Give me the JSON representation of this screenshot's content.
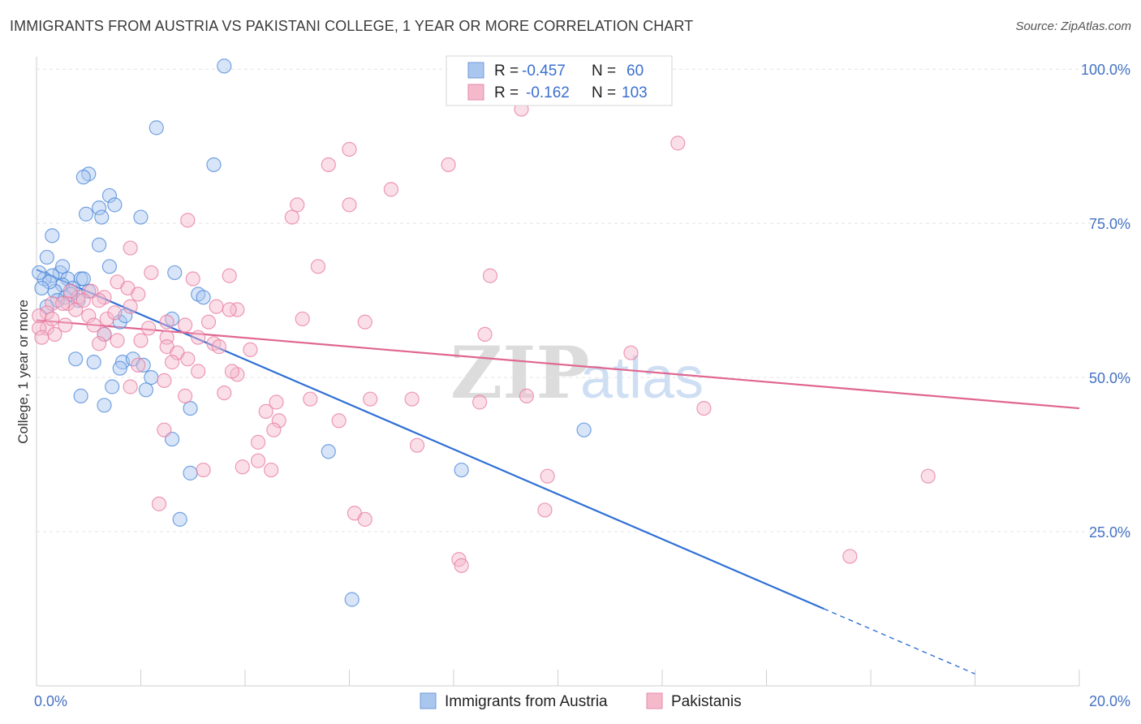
{
  "title": "IMMIGRANTS FROM AUSTRIA VS PAKISTANI COLLEGE, 1 YEAR OR MORE CORRELATION CHART",
  "source": "Source: ZipAtlas.com",
  "watermark": "ZIPatlas",
  "colors": {
    "blue": "#4a86d8",
    "pink": "#e8799f",
    "blue_fill": "#a9c6ef",
    "pink_fill": "#f5b9cc"
  },
  "legend": {
    "rows": [
      {
        "r_label": "R =",
        "r_value": "-0.457",
        "n_label": "N =",
        "n_value": "60"
      },
      {
        "r_label": "R =",
        "r_value": "-0.162",
        "n_label": "N =",
        "n_value": "103"
      }
    ]
  },
  "chart_data": {
    "type": "scatter",
    "xlabel": "",
    "ylabel": "College, 1 year or more",
    "x_tick_labels": [
      "0.0%",
      "20.0%"
    ],
    "y_tick_labels": [
      "100.0%",
      "75.0%",
      "50.0%",
      "25.0%"
    ],
    "xlim": [
      0,
      20
    ],
    "ylim": [
      0,
      102
    ],
    "y_ticks": [
      100,
      75,
      50,
      25
    ],
    "series": [
      {
        "name": "Immigrants from Austria",
        "color": "blue",
        "trend": {
          "x0": 0,
          "y0": 67.5,
          "x1": 15.1,
          "y1": 12.5,
          "dash_to_x": 18.0
        },
        "points": [
          [
            3.6,
            100.5
          ],
          [
            2.3,
            90.5
          ],
          [
            3.4,
            84.5
          ],
          [
            1.0,
            83.0
          ],
          [
            0.9,
            82.5
          ],
          [
            1.4,
            79.5
          ],
          [
            1.2,
            77.5
          ],
          [
            1.5,
            78.0
          ],
          [
            0.95,
            76.5
          ],
          [
            1.25,
            76.0
          ],
          [
            2.0,
            76.0
          ],
          [
            0.3,
            73.0
          ],
          [
            1.2,
            71.5
          ],
          [
            0.2,
            69.5
          ],
          [
            1.4,
            68.0
          ],
          [
            0.45,
            67.0
          ],
          [
            0.3,
            66.5
          ],
          [
            0.6,
            66.0
          ],
          [
            0.85,
            66.0
          ],
          [
            2.65,
            67.0
          ],
          [
            0.15,
            66.0
          ],
          [
            0.5,
            65.0
          ],
          [
            0.7,
            64.5
          ],
          [
            1.0,
            64.0
          ],
          [
            0.35,
            64.0
          ],
          [
            0.25,
            65.5
          ],
          [
            0.55,
            63.0
          ],
          [
            0.8,
            62.5
          ],
          [
            3.1,
            63.5
          ],
          [
            3.2,
            63.0
          ],
          [
            2.6,
            59.5
          ],
          [
            1.6,
            59.0
          ],
          [
            1.3,
            57.0
          ],
          [
            0.75,
            53.0
          ],
          [
            1.1,
            52.5
          ],
          [
            1.65,
            52.5
          ],
          [
            1.85,
            53.0
          ],
          [
            1.6,
            51.5
          ],
          [
            2.05,
            52.0
          ],
          [
            2.2,
            50.0
          ],
          [
            1.45,
            48.5
          ],
          [
            2.1,
            48.0
          ],
          [
            0.85,
            47.0
          ],
          [
            1.3,
            45.5
          ],
          [
            2.95,
            45.0
          ],
          [
            2.6,
            40.0
          ],
          [
            5.6,
            38.0
          ],
          [
            8.15,
            35.0
          ],
          [
            2.95,
            34.5
          ],
          [
            10.5,
            41.5
          ],
          [
            2.75,
            27.0
          ],
          [
            6.05,
            14.0
          ],
          [
            0.05,
            67.0
          ],
          [
            0.1,
            64.5
          ],
          [
            0.4,
            62.5
          ],
          [
            0.65,
            63.5
          ],
          [
            1.7,
            60.0
          ],
          [
            0.2,
            61.5
          ],
          [
            0.5,
            68.0
          ],
          [
            0.9,
            66.0
          ]
        ]
      },
      {
        "name": "Pakistanis",
        "color": "pink",
        "trend": {
          "x0": 0,
          "y0": 59.3,
          "x1": 20,
          "y1": 45.0
        },
        "points": [
          [
            11.6,
            98.0
          ],
          [
            8.3,
            98.5
          ],
          [
            9.3,
            93.5
          ],
          [
            12.3,
            88.0
          ],
          [
            6.0,
            87.0
          ],
          [
            7.9,
            84.5
          ],
          [
            5.6,
            84.5
          ],
          [
            6.8,
            80.5
          ],
          [
            5.0,
            78.0
          ],
          [
            6.0,
            78.0
          ],
          [
            4.9,
            76.0
          ],
          [
            2.9,
            75.5
          ],
          [
            1.8,
            71.0
          ],
          [
            5.4,
            68.0
          ],
          [
            2.2,
            67.0
          ],
          [
            3.7,
            66.5
          ],
          [
            8.7,
            66.5
          ],
          [
            3.0,
            66.0
          ],
          [
            1.55,
            65.5
          ],
          [
            1.75,
            64.5
          ],
          [
            1.05,
            64.0
          ],
          [
            1.95,
            63.5
          ],
          [
            0.8,
            63.0
          ],
          [
            1.3,
            63.0
          ],
          [
            1.2,
            62.5
          ],
          [
            0.6,
            62.0
          ],
          [
            0.3,
            62.0
          ],
          [
            1.8,
            61.5
          ],
          [
            3.45,
            61.5
          ],
          [
            3.85,
            61.0
          ],
          [
            3.7,
            61.0
          ],
          [
            0.2,
            60.5
          ],
          [
            0.75,
            61.0
          ],
          [
            1.0,
            60.0
          ],
          [
            1.35,
            59.5
          ],
          [
            5.1,
            59.5
          ],
          [
            6.3,
            59.0
          ],
          [
            2.5,
            59.0
          ],
          [
            2.85,
            58.5
          ],
          [
            1.1,
            58.5
          ],
          [
            0.55,
            58.5
          ],
          [
            0.2,
            58.0
          ],
          [
            2.15,
            58.0
          ],
          [
            1.3,
            57.0
          ],
          [
            2.5,
            56.5
          ],
          [
            3.1,
            56.5
          ],
          [
            1.55,
            56.0
          ],
          [
            8.6,
            57.0
          ],
          [
            2.5,
            55.0
          ],
          [
            3.4,
            55.5
          ],
          [
            3.5,
            55.0
          ],
          [
            4.1,
            54.5
          ],
          [
            2.7,
            54.0
          ],
          [
            11.4,
            54.0
          ],
          [
            1.2,
            55.5
          ],
          [
            2.6,
            52.5
          ],
          [
            1.95,
            52.0
          ],
          [
            3.1,
            51.0
          ],
          [
            3.85,
            50.5
          ],
          [
            3.75,
            51.0
          ],
          [
            2.45,
            49.5
          ],
          [
            1.8,
            48.5
          ],
          [
            3.6,
            47.5
          ],
          [
            2.85,
            47.0
          ],
          [
            5.25,
            46.5
          ],
          [
            4.6,
            46.0
          ],
          [
            6.4,
            46.5
          ],
          [
            7.2,
            46.5
          ],
          [
            8.5,
            46.0
          ],
          [
            9.4,
            47.0
          ],
          [
            4.4,
            44.5
          ],
          [
            12.8,
            45.0
          ],
          [
            4.65,
            43.0
          ],
          [
            5.8,
            43.0
          ],
          [
            2.45,
            41.5
          ],
          [
            4.55,
            41.5
          ],
          [
            4.25,
            39.5
          ],
          [
            7.3,
            39.0
          ],
          [
            4.25,
            36.5
          ],
          [
            3.95,
            35.5
          ],
          [
            4.5,
            35.0
          ],
          [
            3.2,
            35.0
          ],
          [
            9.8,
            34.0
          ],
          [
            17.1,
            34.0
          ],
          [
            2.35,
            29.5
          ],
          [
            6.1,
            28.0
          ],
          [
            6.3,
            27.0
          ],
          [
            9.75,
            28.5
          ],
          [
            8.1,
            20.5
          ],
          [
            8.15,
            19.5
          ],
          [
            15.6,
            21.0
          ],
          [
            0.05,
            58.0
          ],
          [
            0.1,
            56.5
          ],
          [
            0.05,
            60.0
          ],
          [
            0.3,
            59.5
          ],
          [
            0.5,
            62.0
          ],
          [
            0.65,
            64.0
          ],
          [
            0.9,
            62.5
          ],
          [
            1.5,
            60.5
          ],
          [
            2.0,
            56.0
          ],
          [
            2.9,
            53.0
          ],
          [
            3.3,
            59.0
          ],
          [
            0.35,
            57.0
          ]
        ]
      }
    ]
  },
  "bottom_legend": [
    "Immigrants from Austria",
    "Pakistanis"
  ]
}
